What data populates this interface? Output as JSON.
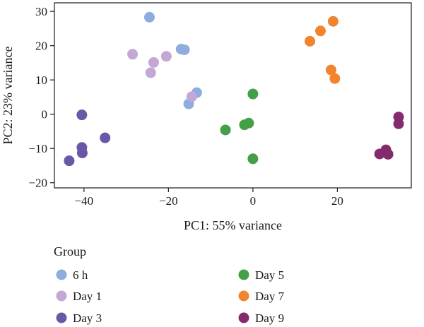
{
  "chart_data": {
    "type": "scatter",
    "xlabel": "PC1: 55% variance",
    "ylabel": "PC2: 23% variance",
    "xlim": [
      -47,
      37.5
    ],
    "ylim": [
      -21.5,
      32.5
    ],
    "xticks": [
      -40,
      -20,
      0,
      20
    ],
    "xtick_labels": [
      "−40",
      "−20",
      "0",
      "20"
    ],
    "yticks": [
      -20,
      -10,
      0,
      10,
      20,
      30
    ],
    "ytick_labels": [
      "−20",
      "−10",
      "0",
      "10",
      "20",
      "30"
    ],
    "grid": false,
    "legend": {
      "title": "Group",
      "position": "bottom"
    },
    "series": [
      {
        "name": "6 h",
        "color": "#8EADDC",
        "points": [
          [
            -24.5,
            28.3
          ],
          [
            -17,
            19
          ],
          [
            -16.2,
            18.8
          ],
          [
            -13.3,
            6.3
          ],
          [
            -15.2,
            3
          ]
        ]
      },
      {
        "name": "Day 1",
        "color": "#C3A7D4",
        "points": [
          [
            -28.5,
            17.5
          ],
          [
            -20.5,
            16.9
          ],
          [
            -23.5,
            15.1
          ],
          [
            -24.2,
            12.1
          ],
          [
            -14.5,
            5.1
          ]
        ]
      },
      {
        "name": "Day 3",
        "color": "#6A57A8",
        "points": [
          [
            -40.5,
            -0.2
          ],
          [
            -40.5,
            -9.7
          ],
          [
            -40.4,
            -11.3
          ],
          [
            -35,
            -6.9
          ],
          [
            -43.5,
            -13.6
          ]
        ]
      },
      {
        "name": "Day 5",
        "color": "#43A047",
        "points": [
          [
            0,
            5.9
          ],
          [
            -6.5,
            -4.6
          ],
          [
            -2,
            -3.1
          ],
          [
            -1,
            -2.6
          ],
          [
            0,
            -13
          ]
        ]
      },
      {
        "name": "Day 7",
        "color": "#F2842E",
        "points": [
          [
            13.5,
            21.3
          ],
          [
            16,
            24.3
          ],
          [
            19,
            27.1
          ],
          [
            18.5,
            12.9
          ],
          [
            19.4,
            10.4
          ]
        ]
      },
      {
        "name": "Day 9",
        "color": "#842B6B",
        "points": [
          [
            34.5,
            -0.8
          ],
          [
            34.5,
            -2.8
          ],
          [
            31.5,
            -10.4
          ],
          [
            30,
            -11.6
          ],
          [
            32,
            -11.7
          ]
        ]
      }
    ]
  }
}
